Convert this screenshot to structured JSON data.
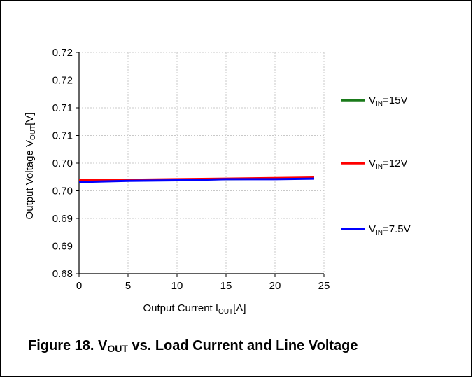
{
  "caption": {
    "prefix": "Figure 18. V",
    "sub": "OUT",
    "suffix": " vs. Load Current and Line Voltage"
  },
  "chart_data": {
    "type": "line",
    "xlabel_main": "Output Current I",
    "xlabel_sub": "OUT",
    "xlabel_unit": "[A]",
    "ylabel_main": "Output Voltage V",
    "ylabel_sub": "OUT",
    "ylabel_unit": "[V]",
    "xlim": [
      0,
      25
    ],
    "ylim": [
      0.68,
      0.72
    ],
    "x_ticks": [
      0,
      5,
      10,
      15,
      20,
      25
    ],
    "x_tick_labels": [
      "0",
      "5",
      "10",
      "15",
      "20",
      "25"
    ],
    "y_ticks": [
      0.68,
      0.685,
      0.69,
      0.695,
      0.7,
      0.705,
      0.71,
      0.715,
      0.72
    ],
    "y_tick_labels": [
      "0.68",
      "",
      "0.69",
      "",
      "0.70",
      "",
      "0.71",
      "",
      "0.72"
    ],
    "y_label_ticks": [
      0.68,
      0.685,
      0.69,
      0.695,
      0.7,
      0.705,
      0.71,
      0.715,
      0.72
    ],
    "y_label_text": [
      "0.68",
      "0.69",
      "0.69",
      "0.70",
      "0.70",
      "0.71",
      "0.71",
      "0.72",
      "0.72"
    ],
    "grid": true,
    "legend_position": "right",
    "series": [
      {
        "name_main": "V",
        "name_sub": "IN",
        "name_value": "=15V",
        "color": "#1a7a1a",
        "x": [
          0,
          5,
          10,
          15,
          20,
          24
        ],
        "y": [
          0.6968,
          0.6969,
          0.697,
          0.6971,
          0.6972,
          0.6973
        ]
      },
      {
        "name_main": "V",
        "name_sub": "IN",
        "name_value": "=12V",
        "color": "#ff0000",
        "x": [
          0,
          5,
          10,
          15,
          20,
          24
        ],
        "y": [
          0.697,
          0.697,
          0.6971,
          0.6972,
          0.6973,
          0.6974
        ]
      },
      {
        "name_main": "V",
        "name_sub": "IN",
        "name_value": "=7.5V",
        "color": "#0000ff",
        "x": [
          0,
          5,
          10,
          15,
          20,
          24
        ],
        "y": [
          0.6966,
          0.6968,
          0.6969,
          0.6971,
          0.6971,
          0.6972
        ]
      }
    ]
  }
}
